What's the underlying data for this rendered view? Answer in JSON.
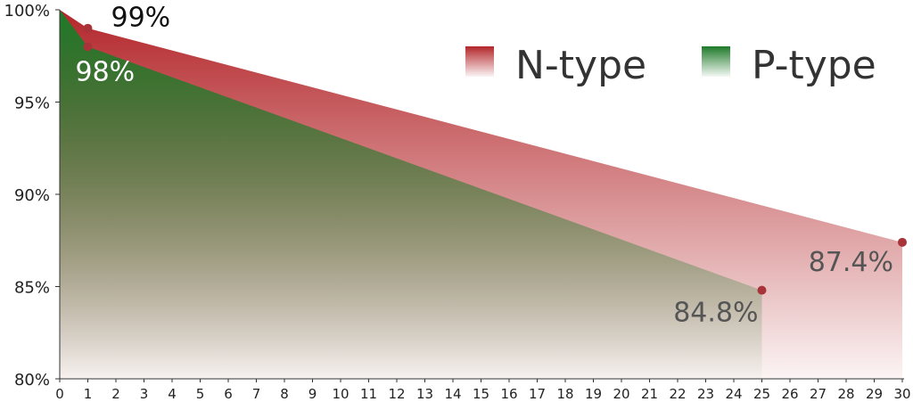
{
  "chart_data": {
    "type": "area",
    "title": "",
    "xlabel": "",
    "ylabel": "",
    "xlim": [
      0,
      30
    ],
    "ylim": [
      80,
      100
    ],
    "x_ticks": [
      0,
      1,
      2,
      3,
      4,
      5,
      6,
      7,
      8,
      9,
      10,
      11,
      12,
      13,
      14,
      15,
      16,
      17,
      18,
      19,
      20,
      21,
      22,
      23,
      24,
      25,
      26,
      27,
      28,
      29,
      30
    ],
    "y_ticks": [
      {
        "value": 80,
        "label": "80%"
      },
      {
        "value": 85,
        "label": "85%"
      },
      {
        "value": 90,
        "label": "90%"
      },
      {
        "value": 95,
        "label": "95%"
      },
      {
        "value": 100,
        "label": "100%"
      }
    ],
    "legend_position": "top-right",
    "series": [
      {
        "name": "N-type",
        "color": "#b3262a",
        "points": [
          {
            "x": 0,
            "y": 100
          },
          {
            "x": 1,
            "y": 99
          },
          {
            "x": 30,
            "y": 87.4
          }
        ],
        "labels": [
          {
            "x": 1,
            "y": 99,
            "text": "99%"
          },
          {
            "x": 30,
            "y": 87.4,
            "text": "87.4%"
          }
        ]
      },
      {
        "name": "P-type",
        "color": "#1f7a2a",
        "points": [
          {
            "x": 0,
            "y": 100
          },
          {
            "x": 1,
            "y": 98
          },
          {
            "x": 25,
            "y": 84.8
          }
        ],
        "labels": [
          {
            "x": 1,
            "y": 98,
            "text": "98%"
          },
          {
            "x": 25,
            "y": 84.8,
            "text": "84.8%"
          }
        ]
      }
    ]
  }
}
